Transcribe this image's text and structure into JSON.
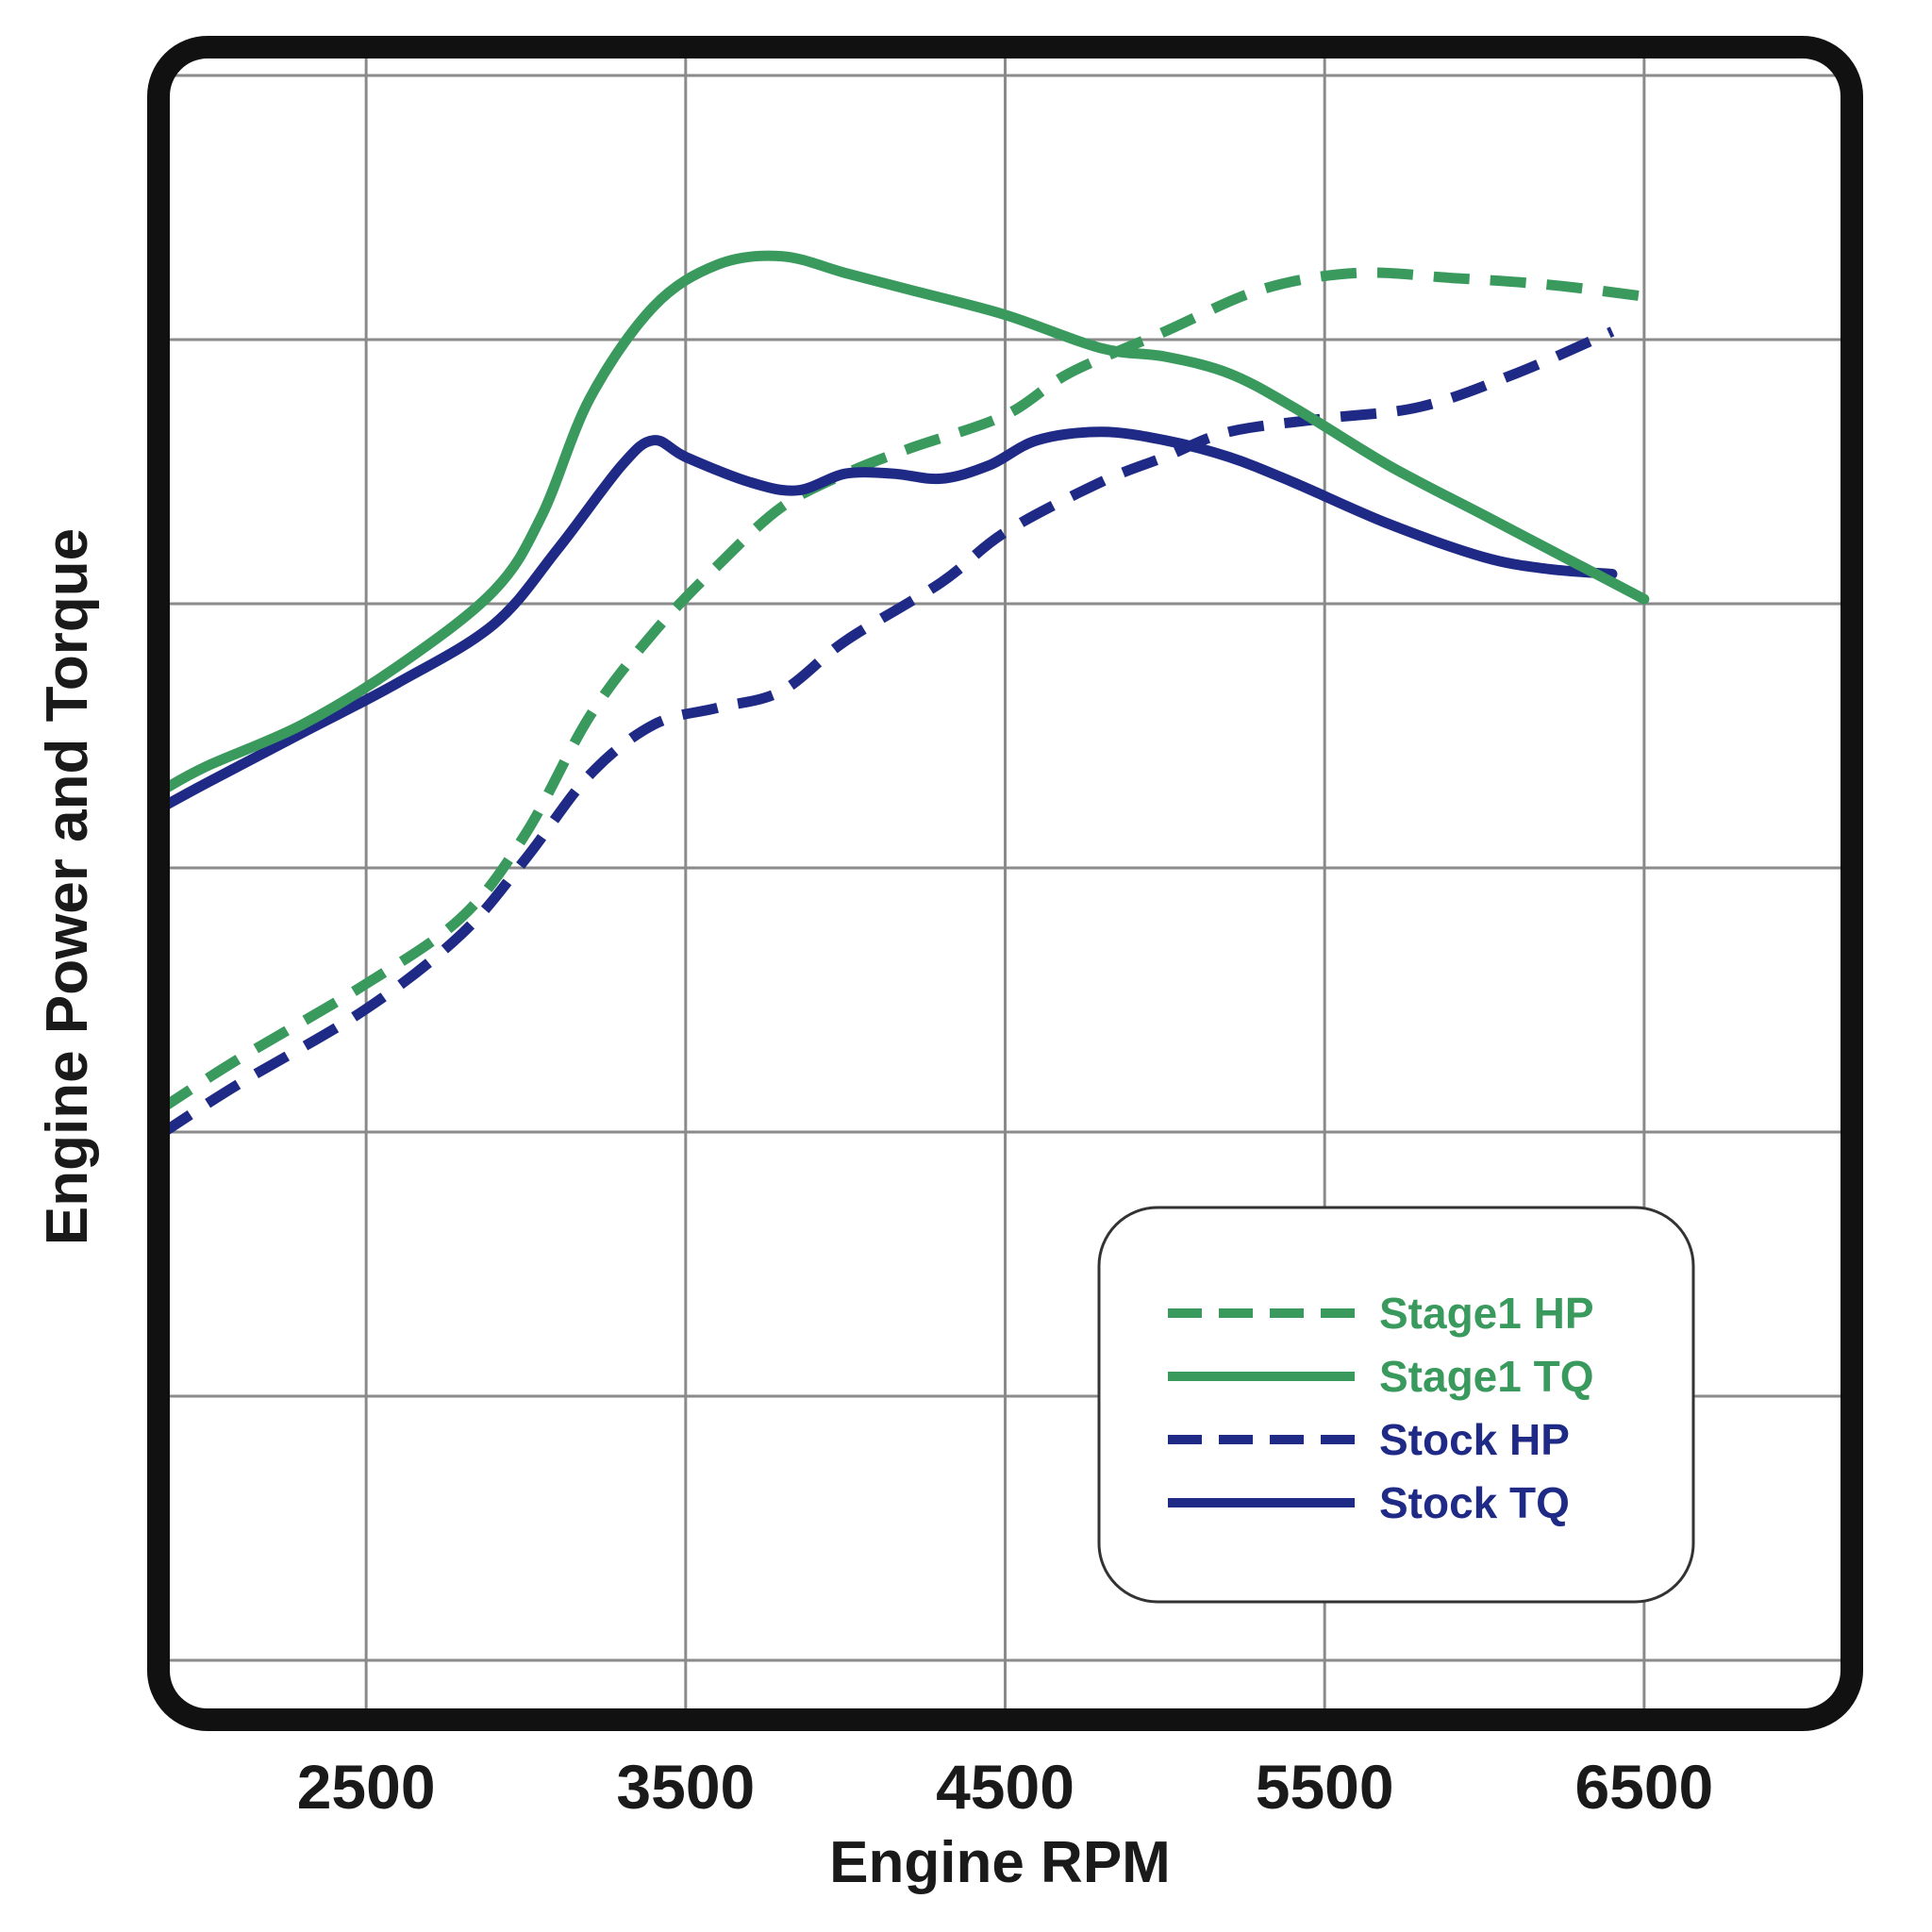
{
  "chart_data": {
    "type": "line",
    "title": "",
    "xlabel": "Engine RPM",
    "ylabel": "Engine Power and Torque",
    "x_ticks": [
      2500,
      3500,
      4500,
      5500,
      6500
    ],
    "xlim": [
      1850,
      7150
    ],
    "ylim": [
      0,
      100
    ],
    "y_tick_labels": [],
    "grid": true,
    "legend_position": "bottom-right",
    "series": [
      {
        "name": "Stage1 HP",
        "style": "dashed",
        "color": "#3a9a5e",
        "x": [
          1850,
          2100,
          2500,
          2800,
          3000,
          3200,
          3400,
          3600,
          3800,
          4000,
          4200,
          4500,
          4700,
          5000,
          5300,
          5600,
          5900,
          6200,
          6500
        ],
        "y": [
          36.5,
          39.5,
          44,
          48,
          53,
          60,
          65,
          69,
          72.5,
          74.5,
          76,
          78,
          80.5,
          83,
          85.5,
          86.5,
          86.2,
          85.8,
          85.1
        ]
      },
      {
        "name": "Stage1 TQ",
        "style": "solid",
        "color": "#3a9a5e",
        "x": [
          1850,
          2000,
          2300,
          2600,
          2900,
          3050,
          3200,
          3400,
          3600,
          3800,
          4000,
          4200,
          4500,
          4800,
          5000,
          5200,
          5400,
          5700,
          6000,
          6300,
          6500
        ],
        "y": [
          55.5,
          57,
          59.5,
          63,
          67.5,
          72,
          79,
          84.5,
          87,
          87.5,
          86.5,
          85.5,
          84,
          82,
          81.5,
          80.5,
          78.5,
          75,
          72,
          69,
          67
        ]
      },
      {
        "name": "Stock HP",
        "style": "dashed",
        "color": "#1f2a87",
        "x": [
          1850,
          2100,
          2500,
          2800,
          3000,
          3200,
          3400,
          3600,
          3800,
          4000,
          4300,
          4500,
          4800,
          5000,
          5200,
          5500,
          5800,
          6100,
          6400
        ],
        "y": [
          35,
          38,
          42.5,
          47,
          51.5,
          56.5,
          59.5,
          60.5,
          61.5,
          64.5,
          68,
          71,
          74,
          75.5,
          77,
          77.8,
          78.5,
          80.5,
          83
        ]
      },
      {
        "name": "Stock TQ",
        "style": "solid",
        "color": "#1f2a87",
        "x": [
          1850,
          2000,
          2300,
          2600,
          2900,
          3100,
          3300,
          3400,
          3500,
          3700,
          3850,
          4000,
          4150,
          4300,
          4450,
          4600,
          4800,
          5000,
          5200,
          5400,
          5700,
          6000,
          6200,
          6400
        ],
        "y": [
          54.5,
          56,
          59,
          62,
          65.5,
          70,
          75,
          76.5,
          75.5,
          74,
          73.5,
          74.5,
          74.5,
          74.2,
          75,
          76.5,
          77,
          76.5,
          75.5,
          74,
          71.5,
          69.5,
          68.8,
          68.5
        ]
      }
    ]
  },
  "legend": {
    "items": [
      {
        "label": "Stage1 HP",
        "color": "#3a9a5e",
        "dashed": true
      },
      {
        "label": "Stage1 TQ",
        "color": "#3a9a5e",
        "dashed": false
      },
      {
        "label": "Stock HP",
        "color": "#1f2a87",
        "dashed": true
      },
      {
        "label": "Stock TQ",
        "color": "#1f2a87",
        "dashed": false
      }
    ]
  }
}
